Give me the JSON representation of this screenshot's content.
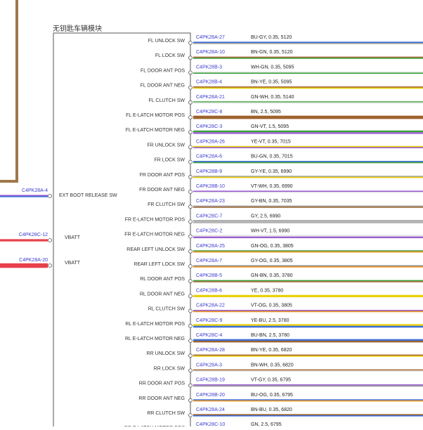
{
  "module": {
    "title": "无钥匙车辆模块"
  },
  "pins": [
    {
      "label": "FL UNLOCK SW",
      "connector": "C4PK28A-27",
      "spec": "BU-GY,  0.35,  5120",
      "c1": "#3b6fd8",
      "c2": "#9a9a9a"
    },
    {
      "label": "FL LOCK SW",
      "connector": "C4PK28A-10",
      "spec": "BN-GN,  0.35,  5120",
      "c1": "#a0622d",
      "c2": "#3aa03a"
    },
    {
      "label": "FL DOOR ANT POS",
      "connector": "C4PK28B-3",
      "spec": "WH-GN,  0.35,  5095",
      "c1": "#e8e8e8",
      "c2": "#3aa03a"
    },
    {
      "label": "FL DOOR ANT NEG",
      "connector": "C4PK28B-4",
      "spec": "BN-YE,  0.35,  5095",
      "c1": "#a0622d",
      "c2": "#e8d000"
    },
    {
      "label": "FL CLUTCH SW",
      "connector": "C4PK28A-21",
      "spec": "GN-WH,  0.35,  5140",
      "c1": "#3aa03a",
      "c2": "#e8e8e8"
    },
    {
      "label": "FL E-LATCH MOTOR POS",
      "connector": "C4PK28C-8",
      "spec": "BN,  2.5,  5095",
      "c1": "#a0622d",
      "c2": "#a0622d"
    },
    {
      "label": "FL E-LATCH MOTOR NEG",
      "connector": "C4PK28C-3",
      "spec": "GN-VT,  1.5,  5095",
      "c1": "#3aa03a",
      "c2": "#9a5fd0"
    },
    {
      "label": "FR UNLOCK SW",
      "connector": "C4PK28A-26",
      "spec": "YE-VT,  0.35,  7015",
      "c1": "#e8d000",
      "c2": "#9a5fd0"
    },
    {
      "label": "FR LOCK SW",
      "connector": "C4PK28A-6",
      "spec": "BU-GN,  0.35,  7015",
      "c1": "#3b6fd8",
      "c2": "#3aa03a"
    },
    {
      "label": "FR DOOR ANT POS",
      "connector": "C4PK28B-9",
      "spec": "GY-YE,  0.35,  6990",
      "c1": "#9a9a9a",
      "c2": "#e8d000"
    },
    {
      "label": "FR DOOR ANT NEG",
      "connector": "C4PK28B-10",
      "spec": "VT-WH,  0.35,  6990",
      "c1": "#9a5fd0",
      "c2": "#e8e8e8"
    },
    {
      "label": "FR CLUTCH SW",
      "connector": "C4PK28A-23",
      "spec": "GY-BN,  0.35,  7035",
      "c1": "#9a9a9a",
      "c2": "#a0622d"
    },
    {
      "label": "FR E-LATCH MOTOR POS",
      "connector": "C4PK28C-7",
      "spec": "GY,  2.5,  6990",
      "c1": "#b0b0b0",
      "c2": "#b0b0b0"
    },
    {
      "label": "FR E-LATCH MOTOR NEG",
      "connector": "C4PK28C-2",
      "spec": "WH-VT,  1.5,  6990",
      "c1": "#e8e8e8",
      "c2": "#9a5fd0"
    },
    {
      "label": "REAR LEFT UNLOCK SW",
      "connector": "C4PK28A-25",
      "spec": "GN-OG,  0.35,  3805",
      "c1": "#3aa03a",
      "c2": "#e8901a"
    },
    {
      "label": "REAR LEFT LOCK SW",
      "connector": "C4PK28A-7",
      "spec": "GY-OG,  0.35,  3805",
      "c1": "#9a9a9a",
      "c2": "#e8901a"
    },
    {
      "label": "RL DOOR ANT POS",
      "connector": "C4PK28B-5",
      "spec": "GN-BN,  0.35,  3780",
      "c1": "#3aa03a",
      "c2": "#a0622d"
    },
    {
      "label": "RL DOOR ANT NEG",
      "connector": "C4PK28B-6",
      "spec": "YE,  0.35,  3780",
      "c1": "#e8d000",
      "c2": "#e8d000"
    },
    {
      "label": "RL CLUTCH SW",
      "connector": "C4PK28A-22",
      "spec": "VT-OG,  0.35,  3805",
      "c1": "#9a5fd0",
      "c2": "#e8901a"
    },
    {
      "label": "RL E-LATCH MOTOR POS",
      "connector": "C4PK28C-9",
      "spec": "YE-BU,  2.5,  3780",
      "c1": "#e8d000",
      "c2": "#3b6fd8"
    },
    {
      "label": "RL E-LATCH MOTOR NEG",
      "connector": "C4PK28C-4",
      "spec": "BU-BN,  2.5,  3780",
      "c1": "#3b6fd8",
      "c2": "#a0622d"
    },
    {
      "label": "RR UNLOCK SW",
      "connector": "C4PK28A-28",
      "spec": "BN-YE,  0.35,  6820",
      "c1": "#a0622d",
      "c2": "#e8d000"
    },
    {
      "label": "RR LOCK SW",
      "connector": "C4PK28A-3",
      "spec": "BN-WH,  0.35,  6820",
      "c1": "#a0622d",
      "c2": "#e8e8e8"
    },
    {
      "label": "RR DOOR ANT POS",
      "connector": "C4PK28B-19",
      "spec": "VT-GY,  0.35,  6795",
      "c1": "#9a5fd0",
      "c2": "#9a9a9a"
    },
    {
      "label": "RR DOOR ANT NEG",
      "connector": "C4PK28B-20",
      "spec": "BU-OG,  0.35,  6795",
      "c1": "#3b6fd8",
      "c2": "#e8901a"
    },
    {
      "label": "RR CLUTCH SW",
      "connector": "C4PK28A-24",
      "spec": "BN-BU,  0.35,  6820",
      "c1": "#a0622d",
      "c2": "#3b6fd8"
    },
    {
      "label": "RR E-LATCH MOTOR POS",
      "connector": "C4PK28C-10",
      "spec": "GN,  2.5,  6795",
      "c1": "#3aa03a",
      "c2": "#3aa03a"
    }
  ],
  "left_pins": [
    {
      "connector": "C4PK28A-4",
      "label": "EXT BOOT RELEASE SW",
      "c1": "#9a5fd0",
      "c2": "#3b6fd8"
    },
    {
      "connector": "C4PK28C-12",
      "label": "VBATT",
      "c1": "#e8404a",
      "c2": "#e8404a"
    },
    {
      "connector": "C4PK28A-20",
      "label": "VBATT",
      "c1": "#e8404a",
      "c2": "#e8404a"
    }
  ],
  "colors": {
    "frame_wire": "#a0784a",
    "module_border": "#555555"
  }
}
